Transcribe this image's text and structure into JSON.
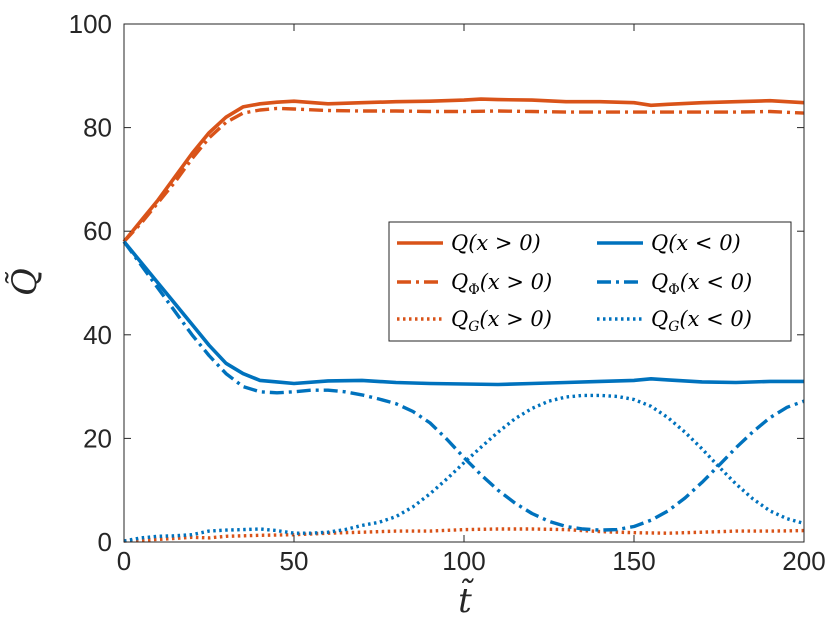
{
  "chart_data": {
    "type": "line",
    "title": "",
    "xlabel": "t̃",
    "ylabel": "Q̃",
    "xlim": [
      0,
      200
    ],
    "ylim": [
      0,
      100
    ],
    "xticks": [
      0,
      50,
      100,
      150,
      200
    ],
    "yticks": [
      0,
      20,
      40,
      60,
      80,
      100
    ],
    "grid": false,
    "legend_position": "right",
    "legend_columns": 2,
    "colors": {
      "orange": "#D95319",
      "blue": "#0072BD",
      "axis": "#262626"
    },
    "series": [
      {
        "name": "Q(x > 0)",
        "legend": {
          "base": "Q",
          "sub": "",
          "arg": "(x > 0)"
        },
        "color": "#D95319",
        "style": "solid",
        "x": [
          0,
          5,
          10,
          15,
          20,
          25,
          30,
          35,
          40,
          45,
          50,
          60,
          70,
          80,
          90,
          100,
          105,
          110,
          120,
          130,
          140,
          150,
          155,
          160,
          170,
          180,
          190,
          200
        ],
        "y": [
          58,
          62,
          66,
          70.5,
          75,
          79,
          82,
          84,
          84.6,
          84.9,
          85.1,
          84.6,
          84.8,
          85.0,
          85.1,
          85.3,
          85.5,
          85.4,
          85.3,
          85.0,
          85.0,
          84.8,
          84.3,
          84.5,
          84.8,
          85.0,
          85.2,
          84.8
        ]
      },
      {
        "name": "QΦ(x > 0)",
        "legend": {
          "base": "Q",
          "sub": "Φ",
          "arg": "(x > 0)"
        },
        "color": "#D95319",
        "style": "dashdot",
        "x": [
          0,
          5,
          10,
          15,
          20,
          25,
          30,
          35,
          40,
          45,
          50,
          60,
          70,
          80,
          90,
          100,
          110,
          120,
          130,
          140,
          150,
          160,
          170,
          180,
          190,
          200
        ],
        "y": [
          58,
          61.5,
          65.5,
          69.5,
          74,
          78,
          81,
          82.8,
          83.4,
          83.7,
          83.6,
          83.3,
          83.2,
          83.2,
          83.1,
          83.1,
          83.2,
          83.1,
          83.0,
          83.0,
          83.0,
          83.0,
          83.0,
          83.0,
          83.1,
          82.8
        ]
      },
      {
        "name": "QG(x > 0)",
        "legend": {
          "base": "Q",
          "sub": "G",
          "arg": "(x > 0)"
        },
        "color": "#D95319",
        "style": "dotted",
        "x": [
          0,
          10,
          20,
          25,
          30,
          40,
          50,
          60,
          70,
          80,
          90,
          100,
          110,
          120,
          130,
          140,
          150,
          160,
          170,
          180,
          190,
          200
        ],
        "y": [
          0.2,
          0.5,
          0.9,
          0.8,
          1.1,
          1.3,
          1.4,
          1.7,
          1.9,
          2.1,
          2.1,
          2.4,
          2.5,
          2.5,
          2.4,
          2.0,
          1.8,
          1.7,
          1.9,
          2.1,
          2.1,
          2.2
        ]
      },
      {
        "name": "Q(x < 0)",
        "legend": {
          "base": "Q",
          "sub": "",
          "arg": "(x < 0)"
        },
        "color": "#0072BD",
        "style": "solid",
        "x": [
          0,
          5,
          10,
          15,
          20,
          25,
          30,
          35,
          40,
          45,
          50,
          60,
          70,
          80,
          90,
          100,
          110,
          120,
          130,
          140,
          150,
          155,
          160,
          170,
          180,
          190,
          200
        ],
        "y": [
          58,
          54,
          50,
          46,
          42,
          38,
          34.5,
          32.5,
          31.2,
          30.9,
          30.6,
          31.1,
          31.2,
          30.8,
          30.6,
          30.5,
          30.4,
          30.6,
          30.8,
          31.0,
          31.2,
          31.5,
          31.3,
          30.9,
          30.8,
          31.0,
          31.0
        ]
      },
      {
        "name": "QΦ(x < 0)",
        "legend": {
          "base": "Q",
          "sub": "Φ",
          "arg": "(x < 0)"
        },
        "color": "#0072BD",
        "style": "dashdot",
        "x": [
          0,
          5,
          10,
          15,
          20,
          25,
          30,
          35,
          40,
          45,
          50,
          55,
          60,
          65,
          70,
          75,
          80,
          85,
          90,
          95,
          100,
          105,
          110,
          115,
          120,
          125,
          130,
          135,
          140,
          145,
          150,
          155,
          160,
          165,
          170,
          175,
          180,
          185,
          190,
          195,
          200
        ],
        "y": [
          58,
          53.5,
          49,
          44.5,
          40,
          36,
          32.5,
          30,
          29,
          28.8,
          29.0,
          29.3,
          29.3,
          29.0,
          28.4,
          27.6,
          26.7,
          25.2,
          23.0,
          19.8,
          16.3,
          13.0,
          10.0,
          7.5,
          5.5,
          4.0,
          3.0,
          2.5,
          2.3,
          2.4,
          3.0,
          4.2,
          6.0,
          8.5,
          11.5,
          14.8,
          18.2,
          21.3,
          24.0,
          26.0,
          27.2
        ]
      },
      {
        "name": "QG(x < 0)",
        "legend": {
          "base": "Q",
          "sub": "G",
          "arg": "(x < 0)"
        },
        "color": "#0072BD",
        "style": "dotted",
        "x": [
          0,
          5,
          10,
          15,
          20,
          25,
          30,
          35,
          40,
          45,
          50,
          55,
          60,
          65,
          70,
          75,
          80,
          85,
          90,
          95,
          100,
          105,
          110,
          115,
          120,
          125,
          130,
          135,
          140,
          145,
          150,
          155,
          160,
          165,
          170,
          175,
          180,
          185,
          190,
          195,
          200
        ],
        "y": [
          0.2,
          0.8,
          1.1,
          1.2,
          1.4,
          2.1,
          2.3,
          2.4,
          2.5,
          2.2,
          1.7,
          1.7,
          1.9,
          2.4,
          3.2,
          3.8,
          4.9,
          6.8,
          9.3,
          12.2,
          15.3,
          18.3,
          21.2,
          23.8,
          25.8,
          27.2,
          28.0,
          28.3,
          28.3,
          28.1,
          27.5,
          26.2,
          24.0,
          21.2,
          18.0,
          14.5,
          11.2,
          8.3,
          6.0,
          4.5,
          3.6
        ]
      }
    ]
  }
}
